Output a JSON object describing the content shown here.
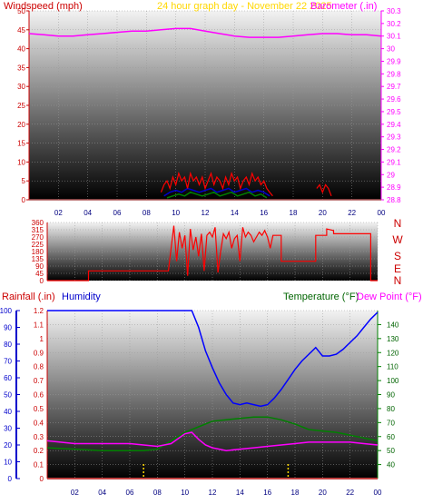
{
  "title": "24 hour graph day - November 22 2025",
  "colors": {
    "wind": "#ff0000",
    "gust": "#ff0000",
    "wind_avg": "#0000cc",
    "wind_low": "#008000",
    "baro": "#ff00ff",
    "dir": "#ff0000",
    "rain": "#ff0000",
    "humidity": "#0000ff",
    "temp": "#008000",
    "dew": "#ff00ff",
    "title": "#ffd700",
    "frame": "#808080"
  },
  "chart_data": [
    {
      "type": "line",
      "name": "wind-baro",
      "left_axis_title": "Windspeed (mph)",
      "right_axis_title": "Barometer (.in)",
      "x_ticks": [
        "02",
        "04",
        "06",
        "08",
        "10",
        "12",
        "14",
        "16",
        "18",
        "20",
        "22",
        "00"
      ],
      "left_ylim": [
        0,
        50
      ],
      "left_ticks": [
        "0",
        "5",
        "10",
        "15",
        "20",
        "25",
        "30",
        "35",
        "40",
        "45",
        "50"
      ],
      "right_ylim": [
        28.8,
        30.3
      ],
      "right_ticks": [
        "28.8",
        "28.9",
        "29",
        "29.1",
        "29.2",
        "29.3",
        "29.4",
        "29.5",
        "29.6",
        "29.7",
        "29.8",
        "29.9",
        "30",
        "30.1",
        "30.2",
        "30.3"
      ],
      "barometer": {
        "x": [
          0,
          1,
          2,
          3,
          4,
          5,
          6,
          7,
          8,
          9,
          10,
          11,
          12,
          13,
          14,
          15,
          16,
          17,
          18,
          19,
          20,
          21,
          22,
          23,
          24
        ],
        "y": [
          30.12,
          30.11,
          30.1,
          30.1,
          30.11,
          30.12,
          30.13,
          30.14,
          30.14,
          30.15,
          30.16,
          30.16,
          30.14,
          30.12,
          30.1,
          30.09,
          30.09,
          30.09,
          30.1,
          30.11,
          30.12,
          30.12,
          30.11,
          30.11,
          30.1
        ]
      },
      "wind_gust": {
        "x": [
          9.0,
          9.2,
          9.4,
          9.6,
          9.8,
          10.0,
          10.2,
          10.4,
          10.6,
          10.8,
          11.0,
          11.2,
          11.4,
          11.6,
          11.8,
          12.0,
          12.2,
          12.4,
          12.6,
          12.8,
          13.0,
          13.2,
          13.4,
          13.6,
          13.8,
          14.0,
          14.2,
          14.4,
          14.6,
          14.8,
          15.0,
          15.2,
          15.4,
          15.6,
          15.8,
          16.0,
          16.2,
          16.4,
          16.6
        ],
        "y": [
          2,
          4,
          5,
          3,
          6,
          4,
          7,
          5,
          6,
          3,
          7,
          5,
          6,
          4,
          6,
          3,
          5,
          7,
          4,
          6,
          5,
          3,
          6,
          4,
          7,
          5,
          6,
          3,
          5,
          6,
          4,
          7,
          5,
          6,
          4,
          5,
          3,
          2,
          1
        ]
      },
      "wind_avg": {
        "x": [
          9.2,
          9.6,
          10.0,
          10.4,
          10.8,
          11.2,
          11.6,
          12.0,
          12.4,
          12.8,
          13.2,
          13.6,
          14.0,
          14.4,
          14.8,
          15.2,
          15.6,
          16.0,
          16.4
        ],
        "y": [
          1,
          2,
          2.5,
          2,
          3,
          2.5,
          2,
          2.5,
          3,
          2,
          2.5,
          3,
          2,
          2.5,
          3,
          2,
          2.5,
          2,
          1
        ]
      },
      "wind_low": {
        "x": [
          9.4,
          9.8,
          10.2,
          10.6,
          11.0,
          11.4,
          11.8,
          12.2,
          12.6,
          13.0,
          13.4,
          13.8,
          14.2,
          14.6,
          15.0,
          15.4,
          15.8,
          16.2
        ],
        "y": [
          0.5,
          1,
          1.5,
          1,
          2,
          1.5,
          1,
          1.5,
          2,
          1,
          1.5,
          2,
          1,
          1.5,
          2,
          1,
          1.5,
          0.5
        ]
      },
      "wind_late": {
        "x": [
          19.6,
          19.8,
          20.0,
          20.2,
          20.4,
          20.6
        ],
        "y": [
          3,
          4,
          2,
          4,
          3,
          1
        ]
      }
    },
    {
      "type": "line",
      "name": "direction",
      "ylim": [
        0,
        360
      ],
      "y_ticks": [
        "0",
        "45",
        "90",
        "135",
        "180",
        "225",
        "270",
        "315",
        "360"
      ],
      "compass_labels": [
        "N",
        "W",
        "S",
        "E",
        "N"
      ],
      "direction": {
        "x": [
          0,
          3.0,
          3.0,
          8.8,
          8.8,
          9.2,
          9.4,
          9.6,
          9.8,
          10.0,
          10.2,
          10.4,
          10.6,
          10.8,
          11.0,
          11.2,
          11.4,
          11.6,
          11.8,
          12.0,
          12.2,
          12.4,
          12.6,
          12.8,
          13.0,
          13.2,
          13.4,
          13.6,
          13.8,
          14.0,
          14.2,
          14.4,
          14.6,
          14.8,
          15.0,
          15.2,
          15.4,
          15.6,
          15.8,
          16.0,
          16.2,
          16.4,
          17.0,
          17.0,
          19.5,
          19.5,
          20.3,
          20.3,
          20.8,
          20.8,
          23.5,
          23.5,
          24
        ],
        "y": [
          0,
          0,
          60,
          60,
          60,
          340,
          120,
          300,
          200,
          280,
          30,
          320,
          190,
          270,
          150,
          290,
          60,
          280,
          300,
          270,
          330,
          50,
          180,
          290,
          260,
          300,
          200,
          260,
          280,
          120,
          330,
          270,
          300,
          280,
          240,
          270,
          300,
          280,
          310,
          270,
          200,
          280,
          280,
          120,
          120,
          280,
          280,
          320,
          310,
          290,
          290,
          0,
          0
        ]
      }
    },
    {
      "type": "line",
      "name": "rain-humidity-temp",
      "left_axis_title": "Rainfall (.in)",
      "humidity_title": "Humidity",
      "right_axis_title": "Temperature (°F)",
      "dew_title": "Dew Point (°F)",
      "x_ticks": [
        "02",
        "04",
        "06",
        "08",
        "10",
        "12",
        "14",
        "16",
        "18",
        "20",
        "22",
        "00"
      ],
      "humidity_ylim": [
        0,
        100
      ],
      "humidity_ticks": [
        "0",
        "10",
        "20",
        "30",
        "40",
        "50",
        "60",
        "70",
        "80",
        "90",
        "100"
      ],
      "rain_ylim": [
        0,
        1.2
      ],
      "rain_ticks": [
        "0",
        "0.1",
        "0.2",
        "0.3",
        "0.4",
        "0.5",
        "0.6",
        "0.7",
        "0.8",
        "0.9",
        "1",
        "1.1",
        "1.2"
      ],
      "temp_ylim": [
        30,
        150
      ],
      "temp_ticks": [
        "40",
        "50",
        "60",
        "70",
        "80",
        "90",
        "100",
        "110",
        "120",
        "130",
        "140"
      ],
      "humidity": {
        "x": [
          0,
          10.5,
          11.0,
          11.5,
          12.0,
          12.5,
          13.0,
          13.5,
          14.0,
          14.5,
          15.0,
          15.5,
          16.0,
          16.5,
          17.0,
          17.5,
          18.0,
          18.5,
          19.0,
          19.5,
          20.0,
          20.5,
          21.0,
          21.5,
          22.0,
          22.5,
          23.0,
          23.5,
          24
        ],
        "y": [
          100,
          100,
          90,
          76,
          66,
          57,
          50,
          45,
          44,
          45,
          44,
          43,
          44,
          48,
          53,
          59,
          65,
          70,
          74,
          78,
          73,
          73,
          74,
          77,
          81,
          85,
          90,
          95,
          99
        ]
      },
      "temperature": {
        "x": [
          0,
          2,
          4,
          6,
          7,
          8,
          9,
          10,
          11,
          12,
          13,
          14,
          15,
          16,
          17,
          18,
          19,
          20,
          21,
          22,
          23,
          24
        ],
        "y": [
          52,
          51,
          50,
          50,
          50,
          51,
          57,
          63,
          67,
          71,
          72,
          73,
          74,
          74,
          72,
          69,
          65,
          64,
          63,
          61,
          59,
          57
        ]
      },
      "dewpoint": {
        "x": [
          0,
          2,
          4,
          6,
          7,
          8,
          9,
          10,
          10.5,
          11,
          11.5,
          12,
          12.5,
          13,
          14,
          15,
          16,
          17,
          18,
          19,
          20,
          21,
          22,
          23,
          24
        ],
        "y": [
          0.27,
          0.25,
          0.25,
          0.25,
          0.24,
          0.23,
          0.25,
          0.32,
          0.33,
          0.28,
          0.24,
          0.22,
          0.21,
          0.2,
          0.21,
          0.22,
          0.23,
          0.24,
          0.25,
          0.26,
          0.26,
          0.26,
          0.26,
          0.25,
          0.24
        ]
      },
      "rainfall": {
        "x": [
          0,
          24
        ],
        "y": [
          0,
          0
        ]
      },
      "markers_x": [
        7.0,
        17.5
      ]
    }
  ]
}
